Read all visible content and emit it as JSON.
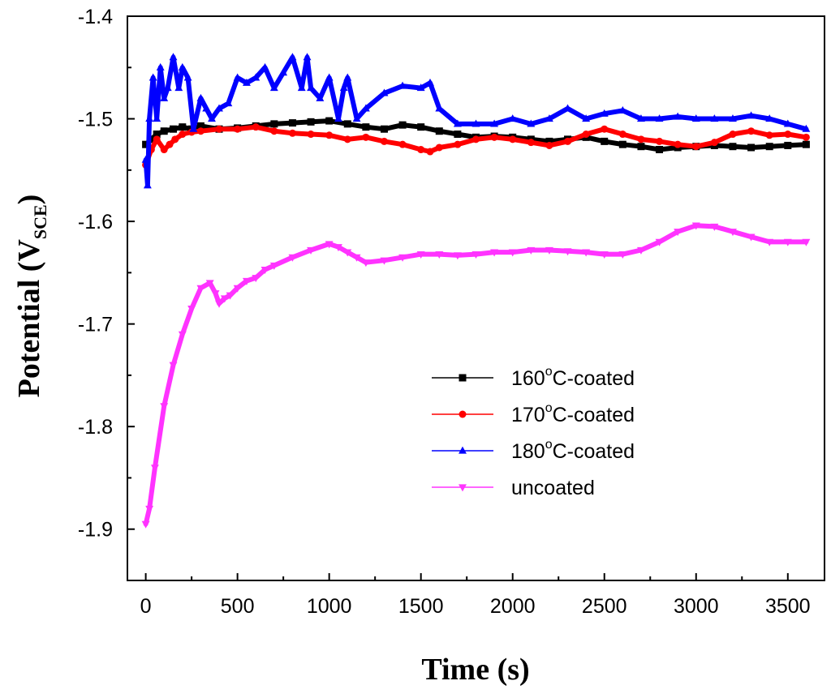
{
  "chart_data": {
    "type": "line",
    "xlabel": "Time (s)",
    "ylabel": {
      "main": "Potential (V",
      "sub": "SCE",
      "close": ")"
    },
    "xlim": [
      -100,
      3700
    ],
    "ylim": [
      -1.95,
      -1.4
    ],
    "x_ticks": [
      0,
      500,
      1000,
      1500,
      2000,
      2500,
      3000,
      3500
    ],
    "y_ticks": [
      -1.4,
      -1.5,
      -1.6,
      -1.7,
      -1.8,
      -1.9
    ],
    "x_tick_labels": [
      "0",
      "500",
      "1000",
      "1500",
      "2000",
      "2500",
      "3000",
      "3500"
    ],
    "y_tick_labels": [
      "-1.4",
      "-1.5",
      "-1.6",
      "-1.7",
      "-1.8",
      "-1.9"
    ],
    "grid": false,
    "legend_position": "lower-right",
    "series": [
      {
        "name": "160°C-coated",
        "legend": {
          "pre": "160",
          "sup": "o",
          "post": "C-coated"
        },
        "color": "#000000",
        "marker": "square",
        "x": [
          0,
          30,
          60,
          100,
          150,
          200,
          250,
          300,
          400,
          500,
          600,
          700,
          800,
          900,
          1000,
          1100,
          1200,
          1300,
          1400,
          1500,
          1600,
          1700,
          1800,
          1900,
          2000,
          2100,
          2200,
          2300,
          2400,
          2500,
          2600,
          2700,
          2800,
          2900,
          3000,
          3100,
          3200,
          3300,
          3400,
          3500,
          3600
        ],
        "y": [
          -1.525,
          -1.52,
          -1.515,
          -1.512,
          -1.51,
          -1.508,
          -1.51,
          -1.507,
          -1.51,
          -1.509,
          -1.507,
          -1.505,
          -1.504,
          -1.503,
          -1.502,
          -1.505,
          -1.508,
          -1.51,
          -1.506,
          -1.508,
          -1.512,
          -1.515,
          -1.518,
          -1.517,
          -1.518,
          -1.52,
          -1.522,
          -1.52,
          -1.518,
          -1.522,
          -1.525,
          -1.527,
          -1.53,
          -1.528,
          -1.527,
          -1.526,
          -1.527,
          -1.528,
          -1.527,
          -1.526,
          -1.525
        ]
      },
      {
        "name": "170°C-coated",
        "legend": {
          "pre": "170",
          "sup": "o",
          "post": "C-coated"
        },
        "color": "#ff0000",
        "marker": "circle",
        "x": [
          0,
          30,
          60,
          100,
          130,
          160,
          200,
          250,
          300,
          400,
          500,
          600,
          700,
          800,
          900,
          1000,
          1100,
          1200,
          1300,
          1400,
          1500,
          1550,
          1600,
          1700,
          1800,
          1900,
          2000,
          2100,
          2200,
          2300,
          2400,
          2500,
          2600,
          2700,
          2800,
          2900,
          3000,
          3100,
          3200,
          3300,
          3400,
          3500,
          3600
        ],
        "y": [
          -1.545,
          -1.53,
          -1.52,
          -1.53,
          -1.525,
          -1.52,
          -1.515,
          -1.513,
          -1.512,
          -1.51,
          -1.51,
          -1.508,
          -1.512,
          -1.514,
          -1.515,
          -1.516,
          -1.52,
          -1.518,
          -1.522,
          -1.525,
          -1.53,
          -1.532,
          -1.528,
          -1.525,
          -1.52,
          -1.518,
          -1.52,
          -1.523,
          -1.526,
          -1.522,
          -1.515,
          -1.51,
          -1.515,
          -1.52,
          -1.522,
          -1.525,
          -1.527,
          -1.523,
          -1.515,
          -1.512,
          -1.516,
          -1.515,
          -1.518
        ]
      },
      {
        "name": "180°C-coated",
        "legend": {
          "pre": "180",
          "sup": "o",
          "post": "C-coated"
        },
        "color": "#0000ff",
        "marker": "triangle-up",
        "x": [
          0,
          10,
          20,
          40,
          60,
          80,
          100,
          120,
          150,
          180,
          200,
          230,
          260,
          300,
          330,
          360,
          400,
          450,
          500,
          550,
          600,
          650,
          700,
          750,
          800,
          850,
          880,
          900,
          950,
          1000,
          1050,
          1080,
          1100,
          1150,
          1200,
          1300,
          1400,
          1500,
          1550,
          1600,
          1700,
          1800,
          1900,
          2000,
          2100,
          2200,
          2300,
          2400,
          2500,
          2600,
          2700,
          2800,
          2900,
          3000,
          3100,
          3200,
          3300,
          3400,
          3500,
          3600
        ],
        "y": [
          -1.54,
          -1.565,
          -1.5,
          -1.46,
          -1.5,
          -1.45,
          -1.48,
          -1.47,
          -1.44,
          -1.47,
          -1.45,
          -1.46,
          -1.51,
          -1.48,
          -1.49,
          -1.5,
          -1.49,
          -1.485,
          -1.46,
          -1.465,
          -1.46,
          -1.45,
          -1.47,
          -1.455,
          -1.44,
          -1.47,
          -1.44,
          -1.47,
          -1.48,
          -1.46,
          -1.5,
          -1.47,
          -1.46,
          -1.5,
          -1.49,
          -1.475,
          -1.468,
          -1.47,
          -1.465,
          -1.49,
          -1.505,
          -1.505,
          -1.505,
          -1.5,
          -1.505,
          -1.5,
          -1.49,
          -1.5,
          -1.495,
          -1.492,
          -1.5,
          -1.5,
          -1.498,
          -1.5,
          -1.5,
          -1.5,
          -1.497,
          -1.5,
          -1.505,
          -1.51
        ]
      },
      {
        "name": "uncoated",
        "legend": {
          "pre": "uncoated",
          "sup": "",
          "post": ""
        },
        "color": "#ff33ff",
        "marker": "triangle-down",
        "x": [
          0,
          20,
          50,
          100,
          150,
          200,
          250,
          300,
          350,
          380,
          400,
          430,
          460,
          500,
          550,
          600,
          650,
          700,
          800,
          900,
          1000,
          1050,
          1100,
          1150,
          1200,
          1300,
          1400,
          1500,
          1600,
          1700,
          1800,
          1900,
          2000,
          2100,
          2200,
          2300,
          2400,
          2500,
          2600,
          2700,
          2800,
          2900,
          3000,
          3100,
          3200,
          3300,
          3400,
          3500,
          3600
        ],
        "y": [
          -1.895,
          -1.88,
          -1.84,
          -1.78,
          -1.74,
          -1.71,
          -1.685,
          -1.665,
          -1.66,
          -1.67,
          -1.68,
          -1.675,
          -1.672,
          -1.665,
          -1.658,
          -1.655,
          -1.647,
          -1.643,
          -1.635,
          -1.628,
          -1.622,
          -1.625,
          -1.63,
          -1.635,
          -1.64,
          -1.638,
          -1.635,
          -1.632,
          -1.632,
          -1.633,
          -1.632,
          -1.63,
          -1.63,
          -1.628,
          -1.628,
          -1.629,
          -1.63,
          -1.632,
          -1.632,
          -1.628,
          -1.62,
          -1.61,
          -1.604,
          -1.605,
          -1.61,
          -1.615,
          -1.62,
          -1.62,
          -1.62
        ]
      }
    ]
  }
}
